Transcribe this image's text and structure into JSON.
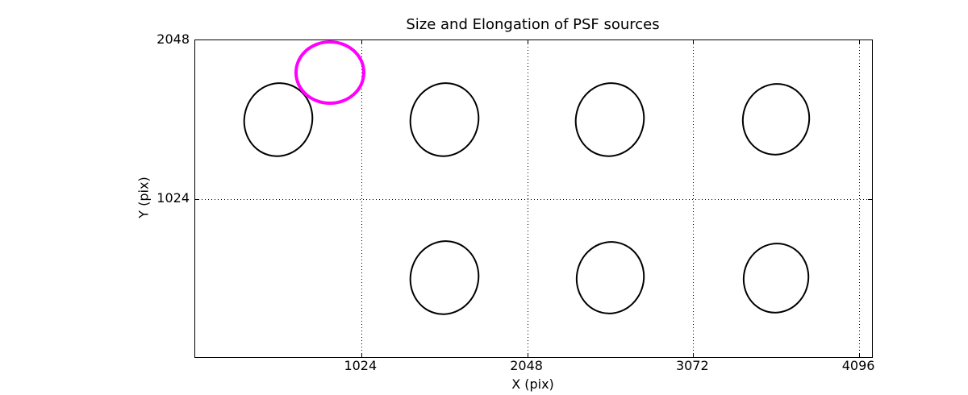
{
  "chart_data": {
    "type": "scatter",
    "title": "Size and Elongation of PSF sources",
    "xlabel": "X (pix)",
    "ylabel": "Y (pix)",
    "xlim": [
      0,
      4175
    ],
    "ylim": [
      0,
      2048
    ],
    "xticks": [
      1024,
      2048,
      3072,
      4096
    ],
    "yticks": [
      1024,
      2048
    ],
    "grid": {
      "style": "dotted",
      "color": "#000000",
      "x_positions": [
        1024,
        2048,
        3072,
        4096
      ],
      "y_positions": [
        1024
      ]
    },
    "marker_colors": {
      "normal": "#000000",
      "highlight": "#ff00ff"
    },
    "ellipses": [
      {
        "x": 512,
        "y": 1536,
        "a": 215,
        "b": 242,
        "angle_deg": 15,
        "color": "#000000",
        "linewidth": 2.3,
        "highlight": false
      },
      {
        "x": 1536,
        "y": 1536,
        "a": 215,
        "b": 242,
        "angle_deg": 15,
        "color": "#000000",
        "linewidth": 2.3,
        "highlight": false
      },
      {
        "x": 2560,
        "y": 1536,
        "a": 215,
        "b": 242,
        "angle_deg": 15,
        "color": "#000000",
        "linewidth": 2.3,
        "highlight": false
      },
      {
        "x": 3584,
        "y": 1536,
        "a": 210,
        "b": 235,
        "angle_deg": 13,
        "color": "#000000",
        "linewidth": 2.3,
        "highlight": false
      },
      {
        "x": 1536,
        "y": 512,
        "a": 215,
        "b": 242,
        "angle_deg": 15,
        "color": "#000000",
        "linewidth": 2.3,
        "highlight": false
      },
      {
        "x": 2560,
        "y": 512,
        "a": 212,
        "b": 238,
        "angle_deg": 14,
        "color": "#000000",
        "linewidth": 2.3,
        "highlight": false
      },
      {
        "x": 3584,
        "y": 512,
        "a": 205,
        "b": 230,
        "angle_deg": 13,
        "color": "#000000",
        "linewidth": 2.3,
        "highlight": false
      },
      {
        "x": 830,
        "y": 1840,
        "a": 218,
        "b": 207,
        "angle_deg": 0,
        "color": "#ff00ff",
        "linewidth": 4.6,
        "highlight": true
      }
    ]
  }
}
